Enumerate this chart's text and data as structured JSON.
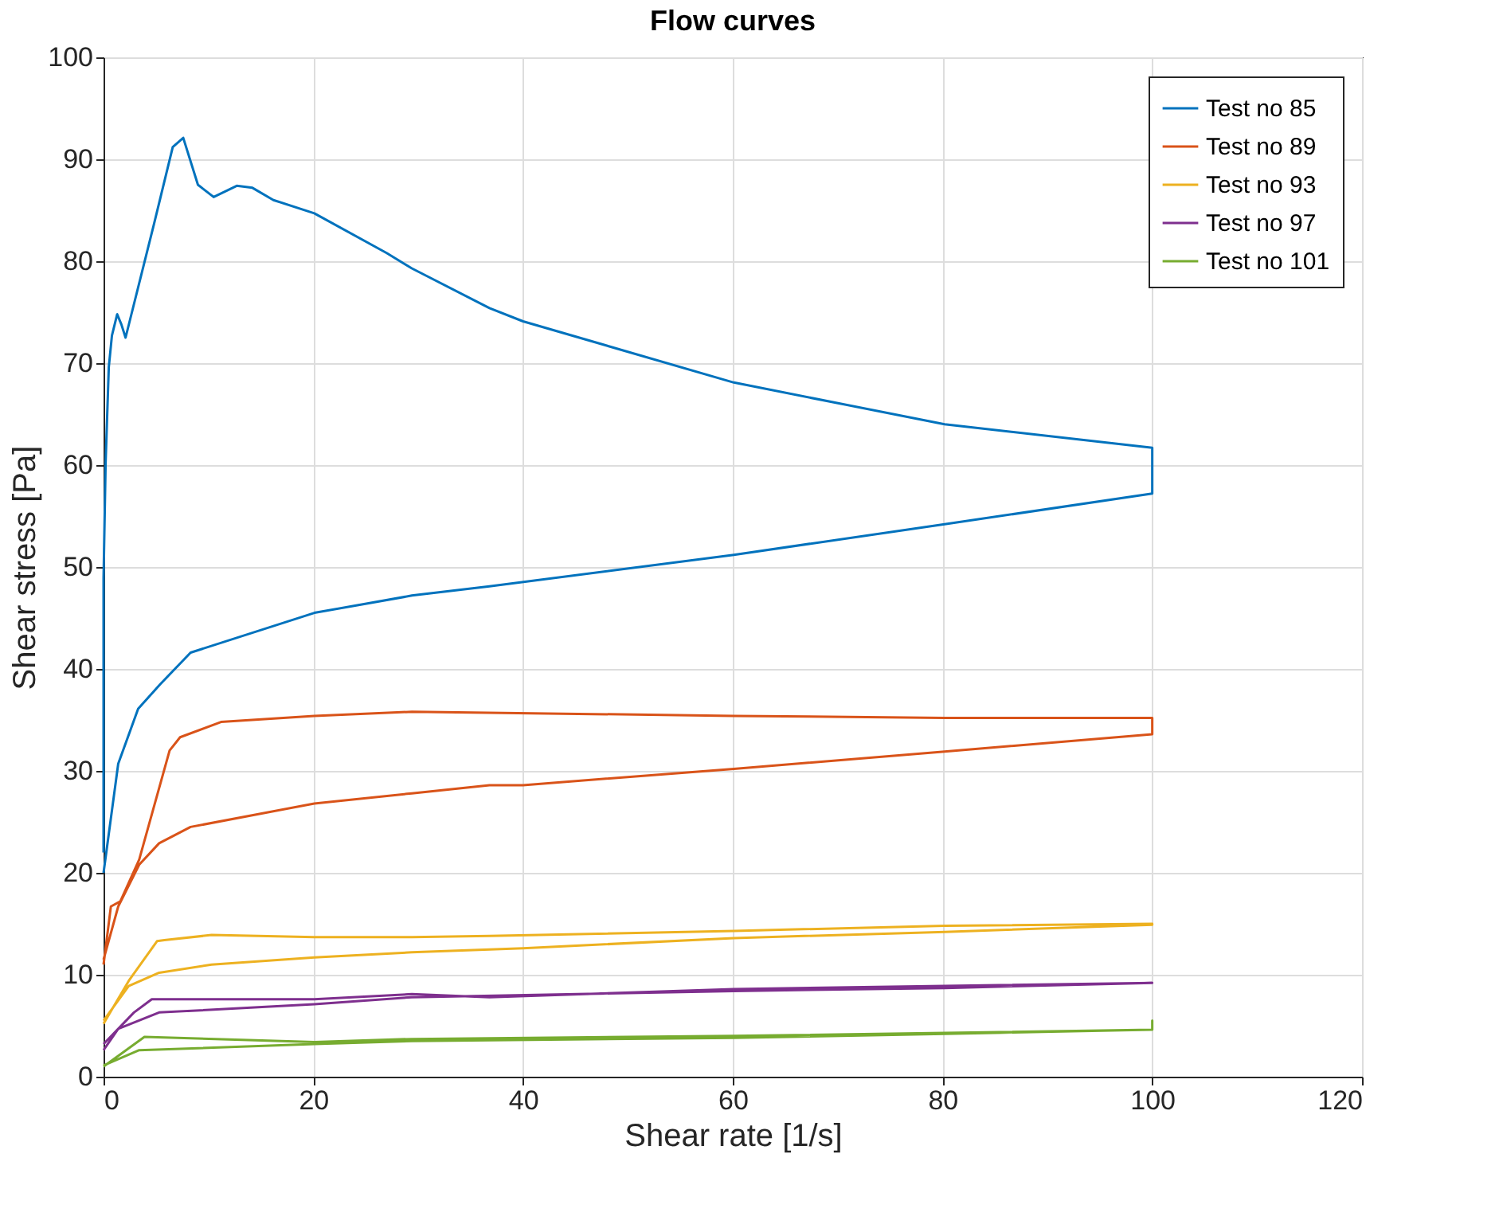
{
  "chart_data": {
    "type": "line",
    "title": "Flow curves",
    "xlabel": "Shear rate [1/s]",
    "ylabel": "Shear stress [Pa]",
    "xlim": [
      0,
      120
    ],
    "xticks": [
      0,
      20,
      40,
      60,
      80,
      100,
      120
    ],
    "ylim": [
      0,
      100
    ],
    "yticks": [
      0,
      10,
      20,
      30,
      40,
      50,
      60,
      70,
      80,
      90,
      100
    ],
    "grid": true,
    "legend": "top right",
    "line_style": "solid",
    "marker": "none",
    "series": [
      {
        "name": "Test no 85",
        "color": "#0072bd",
        "x": [
          0,
          1.4,
          3.3,
          5.4,
          8.3,
          20.1,
          29.4,
          36.8,
          60.1,
          80.2,
          100,
          100,
          80.2,
          60.1,
          40.0,
          36.8,
          29.4,
          27.0,
          20.1,
          16.2,
          14.2,
          12.7,
          10.5,
          9.0,
          7.6,
          6.6,
          4.8,
          2.1,
          1.7,
          1.3,
          0.8,
          0.5,
          0.2,
          0,
          0
        ],
        "values": [
          20,
          30.7,
          36.1,
          38.5,
          41.6,
          45.5,
          47.2,
          48.1,
          51.2,
          54.2,
          57.2,
          61.7,
          64.0,
          68.1,
          74.1,
          75.4,
          79.3,
          80.8,
          84.7,
          86.0,
          87.2,
          87.4,
          86.3,
          87.5,
          92.1,
          91.2,
          83.6,
          72.5,
          73.8,
          74.8,
          72.7,
          69.6,
          60.3,
          48.9,
          22
        ]
      },
      {
        "name": "Test no 89",
        "color": "#d95319",
        "x": [
          0,
          0.7,
          1.6,
          3.4,
          6.3,
          7.3,
          11.2,
          20.1,
          29.4,
          60.1,
          80.2,
          100,
          100,
          80.2,
          60.1,
          40.0,
          36.8,
          29.4,
          20.1,
          8.3,
          5.3,
          3.4,
          1.4,
          0
        ],
        "values": [
          11,
          16.7,
          17.2,
          21.3,
          32.0,
          33.3,
          34.8,
          35.4,
          35.8,
          35.4,
          35.2,
          35.2,
          33.6,
          31.9,
          30.2,
          28.6,
          28.6,
          27.8,
          26.8,
          24.5,
          22.9,
          20.8,
          16.7,
          11.5
        ]
      },
      {
        "name": "Test no 93",
        "color": "#edb120",
        "x": [
          0,
          2.4,
          5.1,
          5.8,
          10.3,
          20.1,
          29.4,
          36.8,
          60.1,
          80.2,
          100,
          100,
          80.2,
          60.1,
          40.0,
          29.4,
          20.1,
          10.3,
          5.3,
          2.4,
          0
        ],
        "values": [
          5.2,
          9.4,
          13.3,
          13.4,
          13.9,
          13.7,
          13.7,
          13.8,
          14.3,
          14.8,
          15.0,
          14.9,
          14.2,
          13.6,
          12.6,
          12.2,
          11.7,
          11.0,
          10.2,
          8.9,
          5.5
        ]
      },
      {
        "name": "Test no 97",
        "color": "#7e2f8e",
        "x": [
          0,
          2.9,
          4.6,
          20.1,
          29.4,
          36.8,
          60.1,
          80.2,
          100,
          80.2,
          60.1,
          29.4,
          20.1,
          5.3,
          1.4,
          0
        ],
        "values": [
          3.2,
          6.3,
          7.6,
          7.6,
          8.1,
          7.8,
          8.6,
          8.9,
          9.2,
          8.7,
          8.4,
          7.8,
          7.1,
          6.3,
          4.7,
          2.6
        ]
      },
      {
        "name": "Test no 101",
        "color": "#77ac30",
        "x": [
          0,
          3.9,
          20.1,
          29.4,
          60.1,
          80.2,
          100,
          100,
          100,
          80.2,
          60.1,
          29.4,
          20.1,
          3.4,
          0
        ],
        "values": [
          1.0,
          3.9,
          3.4,
          3.7,
          4.0,
          4.3,
          4.6,
          5.5,
          4.6,
          4.2,
          3.8,
          3.5,
          3.2,
          2.6,
          1.1
        ]
      }
    ]
  }
}
